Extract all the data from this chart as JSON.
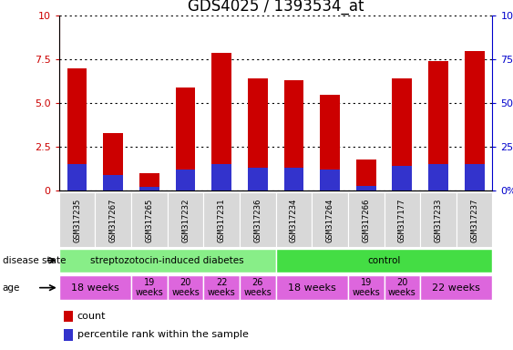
{
  "title": "GDS4025 / 1393534_at",
  "samples": [
    "GSM317235",
    "GSM317267",
    "GSM317265",
    "GSM317232",
    "GSM317231",
    "GSM317236",
    "GSM317234",
    "GSM317264",
    "GSM317266",
    "GSM317177",
    "GSM317233",
    "GSM317237"
  ],
  "count_values": [
    7.0,
    3.3,
    1.0,
    5.9,
    7.9,
    6.4,
    6.3,
    5.5,
    1.8,
    6.4,
    7.4,
    8.0
  ],
  "percentile_values": [
    1.5,
    0.9,
    0.2,
    1.2,
    1.5,
    1.3,
    1.3,
    1.2,
    0.3,
    1.4,
    1.5,
    1.5
  ],
  "ylim_left": [
    0,
    10
  ],
  "ylim_right": [
    0,
    100
  ],
  "yticks_left": [
    0,
    2.5,
    5.0,
    7.5,
    10
  ],
  "yticks_right": [
    0,
    25,
    50,
    75,
    100
  ],
  "bar_color_count": "#cc0000",
  "bar_color_pct": "#3333cc",
  "bar_width": 0.55,
  "grid_color": "#000000",
  "disease_state_groups": [
    {
      "label": "streptozotocin-induced diabetes",
      "start": 0,
      "end": 6,
      "color": "#88ee88"
    },
    {
      "label": "control",
      "start": 6,
      "end": 12,
      "color": "#44dd44"
    }
  ],
  "age_groups": [
    {
      "label": "18 weeks",
      "start": 0,
      "end": 2,
      "fontsize": 8
    },
    {
      "label": "19\nweeks",
      "start": 2,
      "end": 3,
      "fontsize": 7
    },
    {
      "label": "20\nweeks",
      "start": 3,
      "end": 4,
      "fontsize": 7
    },
    {
      "label": "22\nweeks",
      "start": 4,
      "end": 5,
      "fontsize": 7
    },
    {
      "label": "26\nweeks",
      "start": 5,
      "end": 6,
      "fontsize": 7
    },
    {
      "label": "18 weeks",
      "start": 6,
      "end": 8,
      "fontsize": 8
    },
    {
      "label": "19\nweeks",
      "start": 8,
      "end": 9,
      "fontsize": 7
    },
    {
      "label": "20\nweeks",
      "start": 9,
      "end": 10,
      "fontsize": 7
    },
    {
      "label": "22 weeks",
      "start": 10,
      "end": 12,
      "fontsize": 8
    }
  ],
  "age_color": "#dd66dd",
  "tick_label_color": "#cc0000",
  "right_tick_color": "#0000cc",
  "title_fontsize": 12,
  "legend_fontsize": 8,
  "sample_label_fontsize": 6.5,
  "bg_color": "#ffffff",
  "sample_bg_color": "#d8d8d8"
}
